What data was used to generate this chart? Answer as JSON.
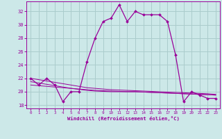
{
  "xlabel": "Windchill (Refroidissement éolien,°C)",
  "background_color": "#cce8e8",
  "grid_color": "#aacccc",
  "line_color": "#990099",
  "x_hours": [
    0,
    1,
    2,
    3,
    4,
    5,
    6,
    7,
    8,
    9,
    10,
    11,
    12,
    13,
    14,
    15,
    16,
    17,
    18,
    19,
    20,
    21,
    22,
    23
  ],
  "temp_line": [
    22,
    21,
    22,
    21,
    18.5,
    20,
    20,
    24.5,
    28,
    30.5,
    31,
    33,
    30.5,
    32,
    31.5,
    31.5,
    31.5,
    30.5,
    25.5,
    18.5,
    20,
    19.5,
    19,
    19
  ],
  "flat_line1": [
    22,
    21.8,
    21.6,
    21.4,
    21.2,
    21.0,
    20.8,
    20.6,
    20.5,
    20.4,
    20.3,
    20.25,
    20.2,
    20.15,
    20.1,
    20.05,
    20.0,
    19.95,
    19.9,
    19.85,
    19.8,
    19.75,
    19.7,
    19.6
  ],
  "flat_line2": [
    21.5,
    21.3,
    21.1,
    20.9,
    20.7,
    20.5,
    20.35,
    20.2,
    20.1,
    20.05,
    20.0,
    20.0,
    20.0,
    20.0,
    19.95,
    19.9,
    19.85,
    19.8,
    19.75,
    19.7,
    19.65,
    19.6,
    19.55,
    19.5
  ],
  "flat_line3": [
    21.0,
    20.9,
    20.8,
    20.7,
    20.6,
    20.5,
    20.4,
    20.3,
    20.2,
    20.15,
    20.1,
    20.05,
    20.0,
    20.0,
    19.95,
    19.9,
    19.85,
    19.8,
    19.75,
    19.7,
    19.65,
    19.6,
    19.55,
    19.5
  ],
  "ylim": [
    17.5,
    33.5
  ],
  "xlim": [
    -0.5,
    23.5
  ],
  "yticks": [
    18,
    20,
    22,
    24,
    26,
    28,
    30,
    32
  ],
  "xticks": [
    0,
    1,
    2,
    3,
    4,
    5,
    6,
    7,
    8,
    9,
    10,
    11,
    12,
    13,
    14,
    15,
    16,
    17,
    18,
    19,
    20,
    21,
    22,
    23
  ]
}
